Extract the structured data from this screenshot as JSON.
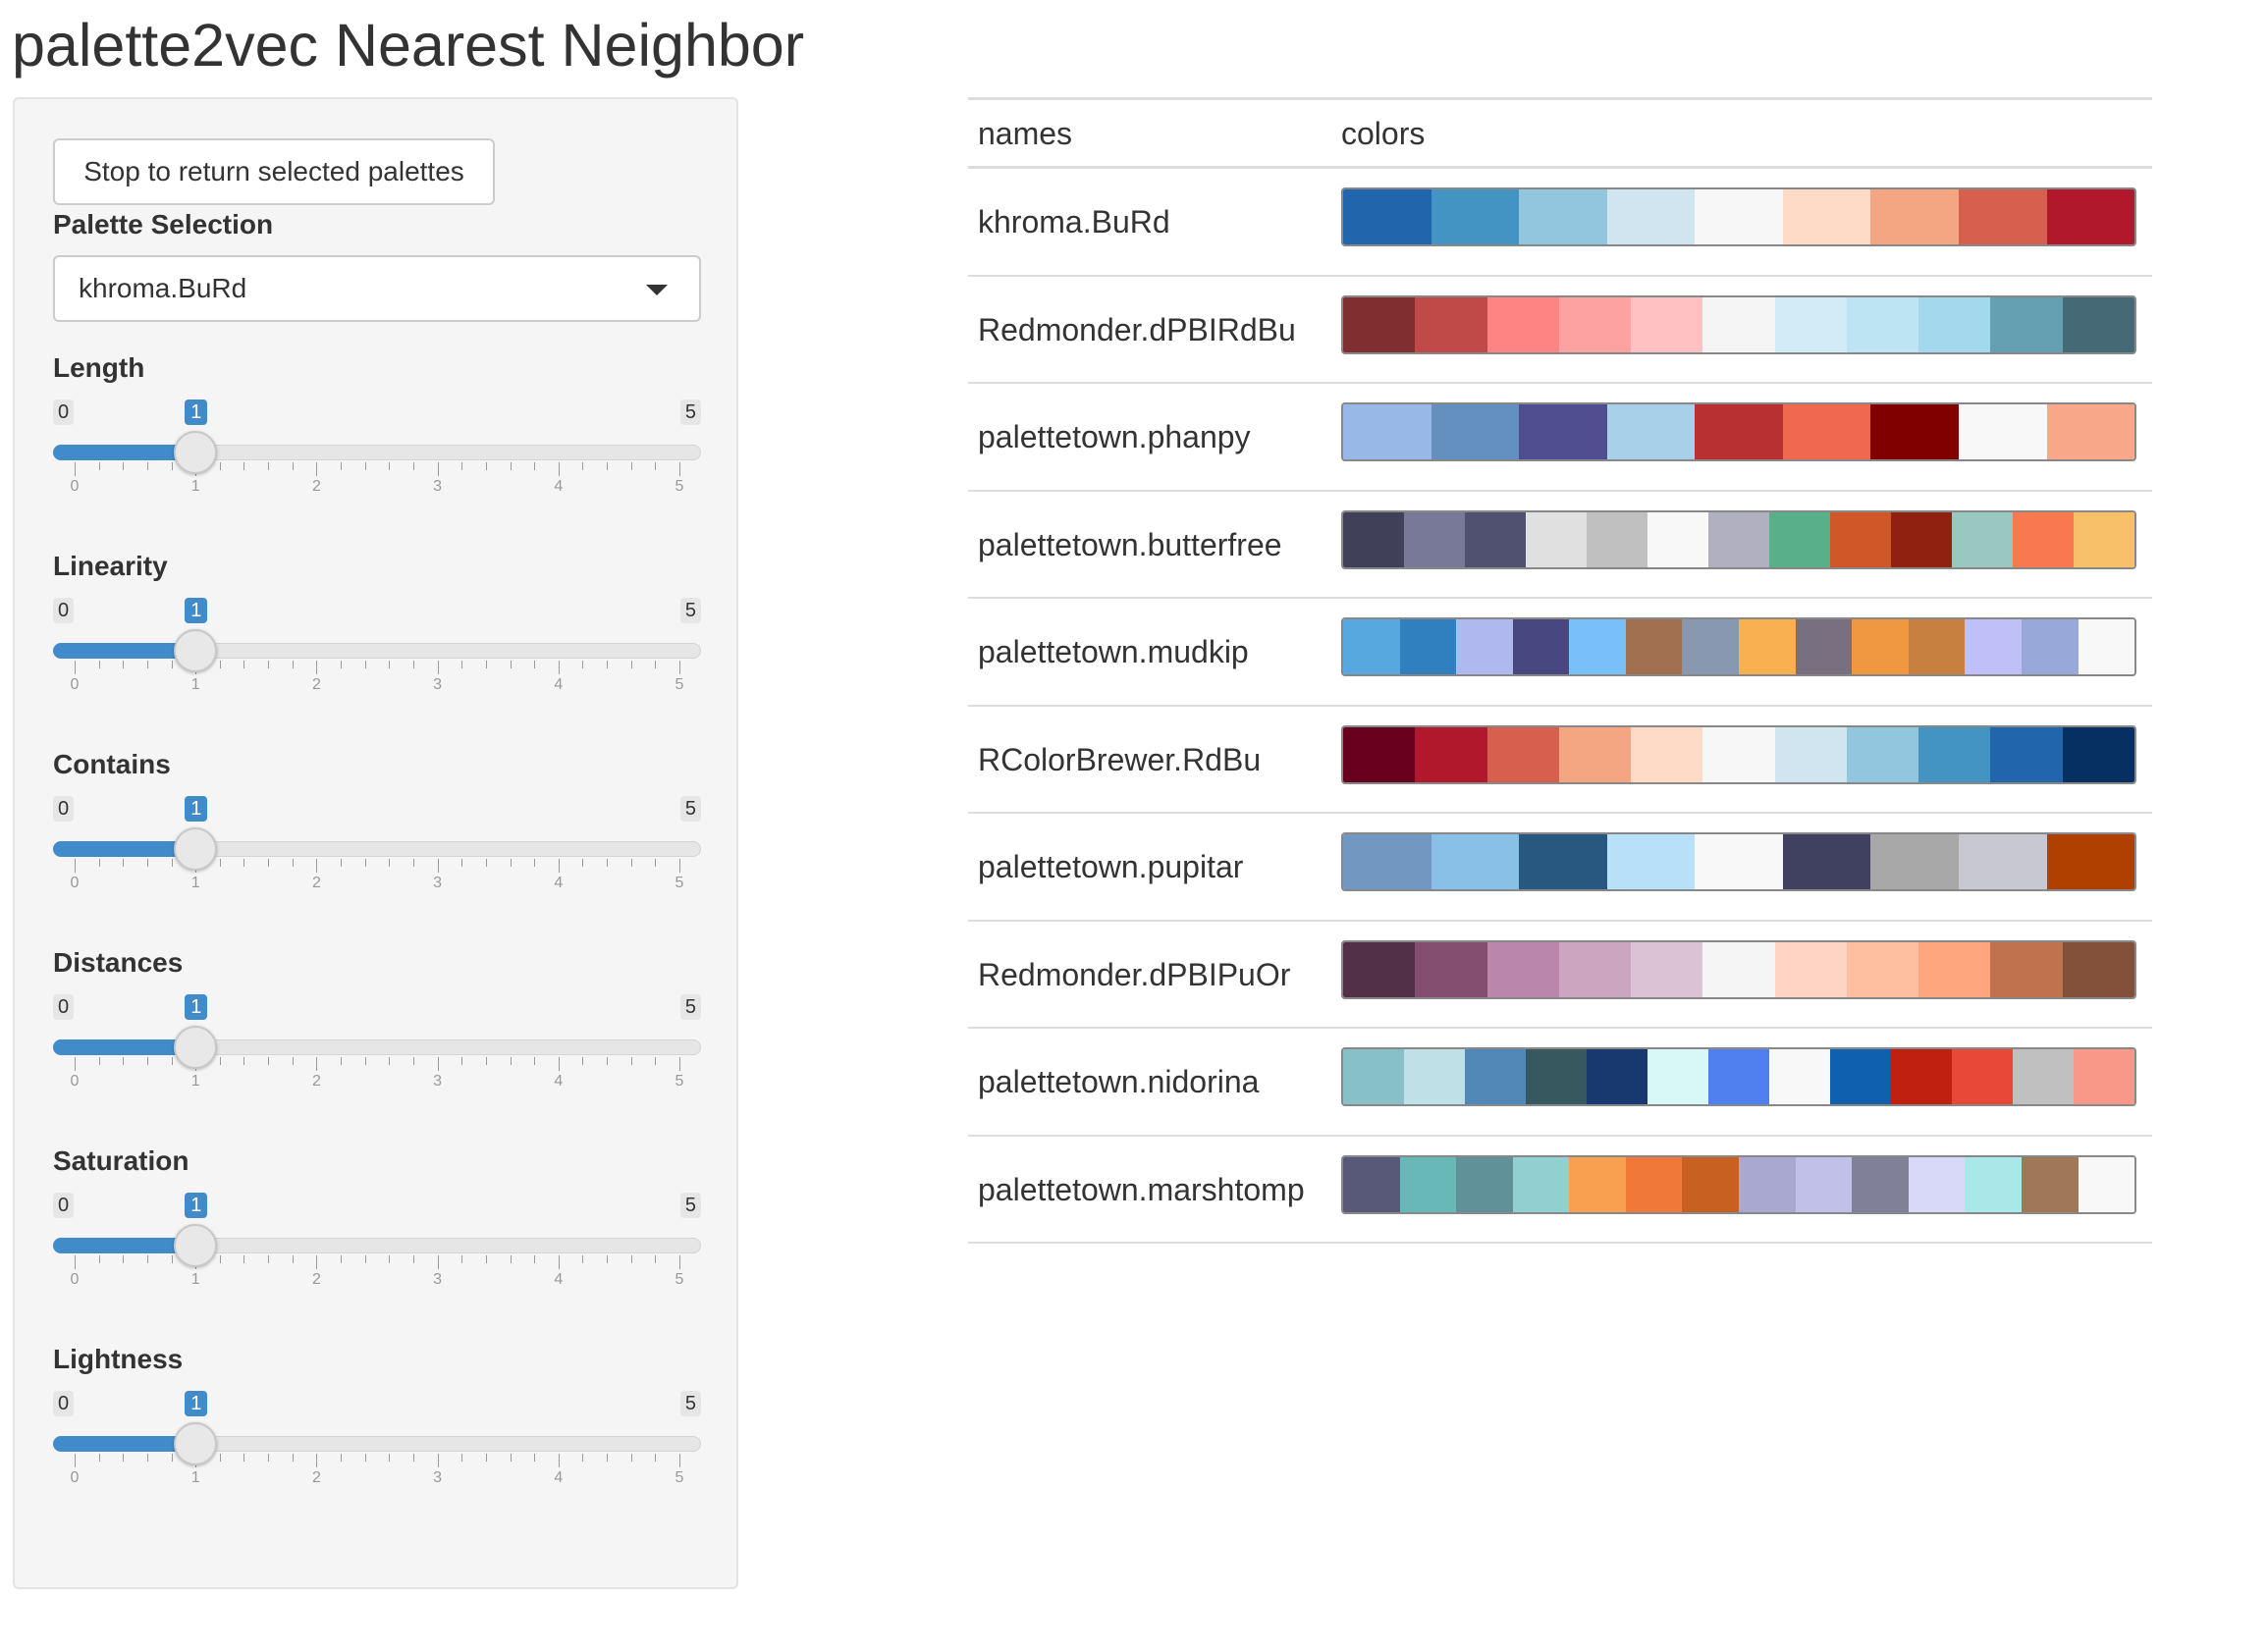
{
  "title": "palette2vec Nearest Neighbor",
  "sidebar": {
    "stop_button": "Stop to return selected palettes",
    "palette_selection_label": "Palette Selection",
    "palette_selection_value": "khroma.BuRd",
    "sliders": [
      {
        "label": "Length",
        "min": "0",
        "max": "5",
        "value": "1",
        "ticks": [
          "0",
          "1",
          "2",
          "3",
          "4",
          "5"
        ]
      },
      {
        "label": "Linearity",
        "min": "0",
        "max": "5",
        "value": "1",
        "ticks": [
          "0",
          "1",
          "2",
          "3",
          "4",
          "5"
        ]
      },
      {
        "label": "Contains",
        "min": "0",
        "max": "5",
        "value": "1",
        "ticks": [
          "0",
          "1",
          "2",
          "3",
          "4",
          "5"
        ]
      },
      {
        "label": "Distances",
        "min": "0",
        "max": "5",
        "value": "1",
        "ticks": [
          "0",
          "1",
          "2",
          "3",
          "4",
          "5"
        ]
      },
      {
        "label": "Saturation",
        "min": "0",
        "max": "5",
        "value": "1",
        "ticks": [
          "0",
          "1",
          "2",
          "3",
          "4",
          "5"
        ]
      },
      {
        "label": "Lightness",
        "min": "0",
        "max": "5",
        "value": "1",
        "ticks": [
          "0",
          "1",
          "2",
          "3",
          "4",
          "5"
        ]
      }
    ]
  },
  "table": {
    "headers": [
      "names",
      "colors"
    ],
    "rows": [
      {
        "name": "khroma.BuRd",
        "colors": [
          "#2166ac",
          "#4393c3",
          "#92c5de",
          "#d1e5f0",
          "#f7f7f7",
          "#fddbc7",
          "#f4a582",
          "#d6604d",
          "#b2182b"
        ]
      },
      {
        "name": "Redmonder.dPBIRdBu",
        "colors": [
          "#7f2f30",
          "#c04a47",
          "#fd8483",
          "#fea2a1",
          "#ffc1c2",
          "#f5f5f5",
          "#d1ecf7",
          "#bde4f2",
          "#a3d8ed",
          "#64a0b2",
          "#456a76"
        ]
      },
      {
        "name": "palettetown.phanpy",
        "colors": [
          "#98b8e8",
          "#6490c0",
          "#504e90",
          "#a8d0e8",
          "#b83030",
          "#f06850",
          "#800000",
          "#f8f8f8",
          "#f8a888"
        ]
      },
      {
        "name": "palettetown.butterfree",
        "colors": [
          "#404058",
          "#787898",
          "#505070",
          "#e0e0e0",
          "#c0c0c0",
          "#f8f8f8",
          "#b0b0c0",
          "#58b088",
          "#d05828",
          "#902010",
          "#98c8c0",
          "#f87850",
          "#f8c068"
        ]
      },
      {
        "name": "palettetown.mudkip",
        "colors": [
          "#58a8e0",
          "#3080c0",
          "#b0b8f0",
          "#484880",
          "#78c0f8",
          "#a07050",
          "#8898b0",
          "#f8b050",
          "#787080",
          "#f09840",
          "#c88040",
          "#c0c0f8",
          "#98a8d8",
          "#f8f8f8"
        ]
      },
      {
        "name": "RColorBrewer.RdBu",
        "colors": [
          "#67001f",
          "#b2182b",
          "#d6604d",
          "#f4a582",
          "#fddbc7",
          "#f7f7f7",
          "#d1e5f0",
          "#92c5de",
          "#4393c3",
          "#2166ac",
          "#053061"
        ]
      },
      {
        "name": "palettetown.pupitar",
        "colors": [
          "#7098c0",
          "#88c0e8",
          "#285880",
          "#b8e0f8",
          "#f8f8f8",
          "#404060",
          "#a8a8a8",
          "#c8c8d0",
          "#b04000"
        ]
      },
      {
        "name": "Redmonder.dPBIPuOr",
        "colors": [
          "#523047",
          "#834e70",
          "#b987ab",
          "#cca6c1",
          "#dcc3d4",
          "#f5f5f5",
          "#fed5c5",
          "#febfa1",
          "#fea77f",
          "#c0714e",
          "#83503a"
        ]
      },
      {
        "name": "palettetown.nidorina",
        "colors": [
          "#88c0c8",
          "#c0e0e8",
          "#5088b8",
          "#385860",
          "#183870",
          "#d8f8f8",
          "#5080f0",
          "#f8f8f8",
          "#1060b0",
          "#c02010",
          "#e84838",
          "#c0c0c0",
          "#f89888"
        ]
      },
      {
        "name": "palettetown.marshtomp",
        "colors": [
          "#585878",
          "#68b8b8",
          "#609098",
          "#90d0d0",
          "#f8a050",
          "#f07838",
          "#c86020",
          "#a8a8d0",
          "#c0c0e8",
          "#808098",
          "#d8d8f8",
          "#a8e8e8",
          "#a07858",
          "#f8f8f8"
        ]
      }
    ]
  }
}
